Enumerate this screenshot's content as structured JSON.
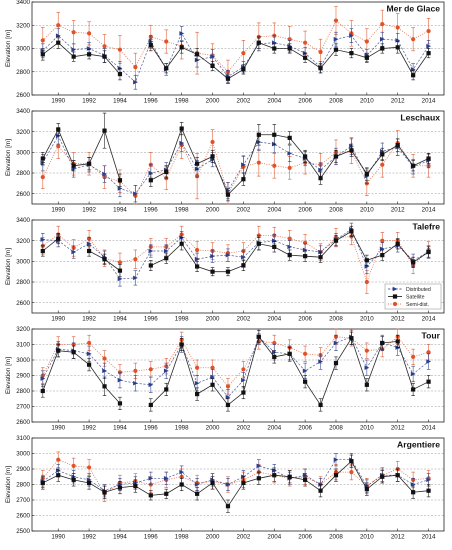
{
  "chart_data": [
    {
      "type": "line",
      "title": "Mer de Glace",
      "ylabel": "Elevation [m]",
      "xlim": [
        1988.3,
        2015
      ],
      "ylim": [
        2600,
        3400
      ],
      "yticks": [
        2600,
        2800,
        3000,
        3200,
        3400
      ],
      "x": [
        1989,
        1990,
        1991,
        1992,
        1993,
        1994,
        1995,
        1996,
        1997,
        1998,
        1999,
        2000,
        2001,
        2002,
        2003,
        2004,
        2005,
        2006,
        2007,
        2008,
        2009,
        2010,
        2011,
        2012,
        2013,
        2014
      ],
      "series": [
        {
          "name": "Distributed",
          "values": [
            2980,
            3110,
            2990,
            3000,
            2940,
            2830,
            2710,
            3060,
            2820,
            3130,
            2900,
            2930,
            2760,
            2840,
            3040,
            3050,
            3020,
            2960,
            2840,
            3080,
            3110,
            2940,
            3080,
            3070,
            2820,
            3020
          ],
          "err": [
            60,
            60,
            50,
            50,
            60,
            60,
            60,
            50,
            50,
            60,
            60,
            60,
            50,
            50,
            60,
            60,
            50,
            50,
            50,
            60,
            60,
            50,
            60,
            60,
            50,
            50
          ]
        },
        {
          "name": "Satellite",
          "values": [
            2950,
            3050,
            2930,
            2950,
            2930,
            2780,
            null,
            3030,
            2830,
            3010,
            2950,
            2850,
            2740,
            2820,
            3050,
            3000,
            3000,
            2920,
            2830,
            2990,
            2960,
            2920,
            3000,
            3010,
            2770,
            2960
          ],
          "err": [
            50,
            50,
            40,
            40,
            50,
            50,
            0,
            50,
            40,
            50,
            50,
            40,
            40,
            40,
            50,
            40,
            40,
            40,
            40,
            50,
            40,
            40,
            40,
            50,
            40,
            40
          ]
        },
        {
          "name": "Semi-dist.",
          "values": [
            3070,
            3200,
            3140,
            3130,
            3020,
            2990,
            2840,
            3100,
            3060,
            3020,
            2960,
            2940,
            2800,
            2960,
            3100,
            3110,
            3080,
            3050,
            2970,
            3240,
            3130,
            3060,
            3210,
            3180,
            3080,
            3150
          ],
          "err": [
            110,
            110,
            100,
            100,
            100,
            120,
            120,
            100,
            100,
            110,
            180,
            100,
            100,
            110,
            120,
            110,
            110,
            100,
            110,
            120,
            110,
            110,
            120,
            120,
            100,
            110
          ]
        }
      ]
    },
    {
      "type": "line",
      "title": "Leschaux",
      "ylabel": "Elevation [m]",
      "xlim": [
        1988.3,
        2015
      ],
      "ylim": [
        2500,
        3400
      ],
      "yticks": [
        2600,
        2800,
        3000,
        3200,
        3400
      ],
      "x": [
        1989,
        1990,
        1991,
        1992,
        1993,
        1994,
        1995,
        1996,
        1997,
        1998,
        1999,
        2000,
        2001,
        2002,
        2003,
        2004,
        2005,
        2006,
        2007,
        2008,
        2009,
        2010,
        2011,
        2012,
        2013,
        2014
      ],
      "series": [
        {
          "name": "Distributed",
          "values": [
            2900,
            3160,
            2840,
            2880,
            2790,
            2650,
            2600,
            2800,
            2830,
            3090,
            2840,
            2930,
            2630,
            2880,
            3100,
            3080,
            2990,
            2940,
            2830,
            2960,
            3060,
            2770,
            3010,
            3050,
            2860,
            2920
          ],
          "err": [
            80,
            80,
            80,
            70,
            80,
            80,
            80,
            80,
            70,
            80,
            80,
            70,
            80,
            80,
            80,
            80,
            80,
            70,
            70,
            80,
            80,
            70,
            80,
            80,
            70,
            70
          ]
        },
        {
          "name": "Satellite",
          "values": [
            2940,
            3220,
            2870,
            2890,
            3210,
            2730,
            null,
            2730,
            2810,
            3230,
            2890,
            2960,
            2590,
            2740,
            3170,
            3170,
            3140,
            2960,
            2750,
            2960,
            3020,
            2790,
            2980,
            3070,
            2870,
            2940
          ],
          "err": [
            60,
            60,
            50,
            60,
            170,
            60,
            0,
            60,
            60,
            60,
            60,
            60,
            60,
            60,
            100,
            100,
            60,
            60,
            60,
            60,
            60,
            60,
            60,
            60,
            50,
            50
          ]
        },
        {
          "name": "Semi-dist.",
          "values": [
            2760,
            3060,
            2890,
            2890,
            2760,
            2720,
            2580,
            2880,
            2750,
            3070,
            2770,
            3100,
            2600,
            2860,
            2900,
            2870,
            2850,
            2900,
            2880,
            3000,
            3010,
            2700,
            2880,
            3090,
            2870,
            2870
          ],
          "err": [
            110,
            120,
            110,
            110,
            110,
            110,
            100,
            120,
            110,
            130,
            220,
            120,
            110,
            110,
            130,
            120,
            110,
            110,
            110,
            120,
            120,
            120,
            120,
            120,
            110,
            110
          ]
        }
      ]
    },
    {
      "type": "line",
      "title": "Talefre",
      "ylabel": "Elevation [m]",
      "xlim": [
        1988.3,
        2015
      ],
      "ylim": [
        2500,
        3400
      ],
      "yticks": [
        2600,
        2800,
        3000,
        3200,
        3400
      ],
      "x": [
        1989,
        1990,
        1991,
        1992,
        1993,
        1994,
        1995,
        1996,
        1997,
        1998,
        1999,
        2000,
        2001,
        2002,
        2003,
        2004,
        2005,
        2006,
        2007,
        2008,
        2009,
        2010,
        2011,
        2012,
        2013,
        2014
      ],
      "series": [
        {
          "name": "Distributed",
          "values": [
            3210,
            3200,
            3090,
            3170,
            3040,
            2830,
            2840,
            3100,
            3100,
            3230,
            3020,
            3050,
            3060,
            3040,
            3180,
            3200,
            3140,
            3110,
            3090,
            3210,
            3310,
            2950,
            3120,
            3150,
            3010,
            3090
          ],
          "err": [
            60,
            60,
            60,
            60,
            60,
            70,
            70,
            60,
            60,
            60,
            60,
            60,
            60,
            60,
            70,
            60,
            60,
            60,
            60,
            60,
            60,
            70,
            60,
            60,
            60,
            60
          ]
        },
        {
          "name": "Satellite",
          "values": [
            3100,
            3220,
            null,
            3100,
            3020,
            2910,
            null,
            2960,
            3030,
            3170,
            2950,
            2900,
            2900,
            2960,
            3170,
            3140,
            3060,
            3050,
            3040,
            3200,
            3290,
            3010,
            3060,
            3170,
            2990,
            3090
          ],
          "err": [
            50,
            50,
            0,
            50,
            50,
            60,
            0,
            50,
            50,
            60,
            50,
            40,
            40,
            50,
            60,
            50,
            50,
            50,
            50,
            50,
            50,
            50,
            50,
            50,
            50,
            50
          ]
        },
        {
          "name": "Semi-dist.",
          "values": [
            3150,
            3260,
            3130,
            3220,
            3030,
            2990,
            3020,
            3140,
            3140,
            3260,
            3110,
            3100,
            3080,
            3100,
            3250,
            3250,
            3220,
            3180,
            3090,
            3230,
            3240,
            2800,
            3200,
            3200,
            2960,
            3110
          ],
          "err": [
            80,
            80,
            80,
            80,
            80,
            90,
            90,
            80,
            80,
            80,
            80,
            80,
            80,
            80,
            90,
            80,
            80,
            80,
            80,
            90,
            80,
            110,
            80,
            80,
            80,
            80
          ]
        }
      ]
    },
    {
      "type": "line",
      "title": "Tour",
      "ylabel": "Elevation [m]",
      "xlim": [
        1988.3,
        2015
      ],
      "ylim": [
        2600,
        3200
      ],
      "yticks": [
        2600,
        2700,
        2800,
        2900,
        3000,
        3100,
        3200
      ],
      "x": [
        1989,
        1990,
        1991,
        1992,
        1993,
        1994,
        1995,
        1996,
        1997,
        1998,
        1999,
        2000,
        2001,
        2002,
        2003,
        2004,
        2005,
        2006,
        2007,
        2008,
        2009,
        2010,
        2011,
        2012,
        2013,
        2014
      ],
      "series": [
        {
          "name": "Distributed",
          "values": [
            2880,
            3070,
            3060,
            3040,
            2930,
            2870,
            2850,
            2840,
            2930,
            3100,
            2850,
            2890,
            2760,
            2870,
            3150,
            3050,
            3040,
            2930,
            2990,
            3110,
            3150,
            2950,
            3110,
            3080,
            2910,
            2990
          ],
          "err": [
            50,
            50,
            50,
            50,
            50,
            50,
            50,
            50,
            50,
            50,
            50,
            50,
            50,
            50,
            50,
            50,
            50,
            50,
            50,
            50,
            50,
            50,
            50,
            50,
            50,
            50
          ]
        },
        {
          "name": "Satellite",
          "values": [
            2800,
            3060,
            3050,
            2970,
            2830,
            2720,
            null,
            2710,
            2810,
            3100,
            2780,
            2840,
            2710,
            2790,
            3150,
            3020,
            3040,
            2860,
            2710,
            2980,
            3140,
            2840,
            3110,
            3120,
            2810,
            2860
          ],
          "err": [
            40,
            40,
            40,
            40,
            60,
            40,
            0,
            40,
            40,
            40,
            40,
            40,
            40,
            40,
            40,
            40,
            40,
            40,
            40,
            40,
            40,
            40,
            40,
            40,
            40,
            40
          ]
        },
        {
          "name": "Semi-dist.",
          "values": [
            2900,
            3100,
            3100,
            3110,
            3010,
            2920,
            2930,
            2940,
            2960,
            3130,
            2950,
            2950,
            2830,
            2940,
            3120,
            3110,
            3080,
            3040,
            3030,
            3150,
            3140,
            3060,
            3070,
            3150,
            3020,
            3050
          ],
          "err": [
            50,
            50,
            50,
            50,
            50,
            50,
            50,
            50,
            50,
            50,
            50,
            50,
            50,
            50,
            50,
            50,
            50,
            50,
            50,
            50,
            50,
            50,
            50,
            50,
            50,
            50
          ]
        }
      ]
    },
    {
      "type": "line",
      "title": "Argentiere",
      "ylabel": "Elevation [m]",
      "xlim": [
        1988.3,
        2015
      ],
      "ylim": [
        2500,
        3100
      ],
      "yticks": [
        2500,
        2600,
        2700,
        2800,
        2900,
        3000,
        3100
      ],
      "x": [
        1989,
        1990,
        1991,
        1992,
        1993,
        1994,
        1995,
        1996,
        1997,
        1998,
        1999,
        2000,
        2001,
        2002,
        2003,
        2004,
        2005,
        2006,
        2007,
        2008,
        2009,
        2010,
        2011,
        2012,
        2013,
        2014
      ],
      "series": [
        {
          "name": "Distributed",
          "values": [
            2820,
            2890,
            2850,
            2830,
            2760,
            2800,
            2810,
            2840,
            2840,
            2880,
            2800,
            2830,
            2800,
            2850,
            2920,
            2890,
            2840,
            2860,
            2800,
            2960,
            2960,
            2790,
            2860,
            2860,
            2800,
            2830
          ],
          "err": [
            40,
            40,
            40,
            40,
            40,
            40,
            40,
            40,
            40,
            40,
            40,
            40,
            40,
            40,
            40,
            40,
            40,
            40,
            40,
            40,
            40,
            40,
            40,
            40,
            40,
            40
          ]
        },
        {
          "name": "Satellite",
          "values": [
            2810,
            2860,
            2830,
            2810,
            2750,
            2780,
            2790,
            2730,
            2740,
            2800,
            2740,
            2810,
            2660,
            2810,
            2840,
            2860,
            2850,
            2830,
            2760,
            2860,
            2950,
            2770,
            2850,
            2860,
            2750,
            2760
          ],
          "err": [
            40,
            40,
            40,
            40,
            40,
            40,
            40,
            30,
            30,
            40,
            40,
            40,
            40,
            40,
            40,
            40,
            40,
            40,
            40,
            40,
            40,
            40,
            40,
            40,
            40,
            40
          ]
        },
        {
          "name": "Semi-dist.",
          "values": [
            2840,
            2960,
            2920,
            2910,
            2740,
            2810,
            2820,
            2800,
            2830,
            2850,
            2810,
            2820,
            2800,
            2830,
            2880,
            2860,
            2840,
            2850,
            2800,
            2880,
            2880,
            2790,
            2860,
            2900,
            2830,
            2840
          ],
          "err": [
            50,
            50,
            50,
            50,
            50,
            50,
            50,
            50,
            50,
            50,
            50,
            50,
            50,
            50,
            50,
            50,
            50,
            50,
            50,
            50,
            50,
            50,
            50,
            50,
            50,
            50
          ]
        }
      ]
    }
  ],
  "xticks": [
    1990,
    1992,
    1994,
    1996,
    1998,
    2000,
    2002,
    2004,
    2006,
    2008,
    2010,
    2012,
    2014
  ],
  "colors": {
    "Distributed": "#2b3f8c",
    "Satellite": "#111111",
    "Semi-dist.": "#e0532a",
    "grid": "#9a9a9a",
    "axis": "#222222"
  },
  "legend": {
    "panel": 2,
    "placement": "bottom-right",
    "entries": [
      "Distributed",
      "Satellite",
      "Semi-dist."
    ]
  }
}
